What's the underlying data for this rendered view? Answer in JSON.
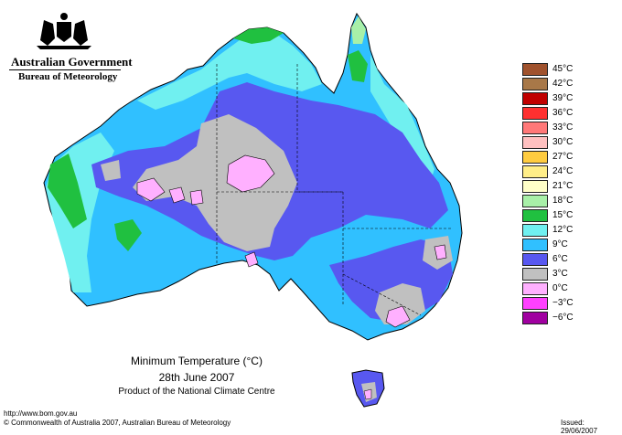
{
  "header": {
    "government": "Australian Government",
    "bureau": "Bureau of Meteorology",
    "crest_icon": "coat-of-arms-icon"
  },
  "map": {
    "title": "Minimum Temperature (°C)",
    "date": "28th June 2007",
    "product": "Product of the National Climate Centre"
  },
  "legend": [
    {
      "label": "45°C",
      "color": "#a0522d"
    },
    {
      "label": "42°C",
      "color": "#a87848"
    },
    {
      "label": "39°C",
      "color": "#c00000"
    },
    {
      "label": "36°C",
      "color": "#ff3030"
    },
    {
      "label": "33°C",
      "color": "#ff7878"
    },
    {
      "label": "30°C",
      "color": "#ffc0c0"
    },
    {
      "label": "27°C",
      "color": "#ffcc40"
    },
    {
      "label": "24°C",
      "color": "#ffee88"
    },
    {
      "label": "21°C",
      "color": "#ffffc8"
    },
    {
      "label": "18°C",
      "color": "#a8f0a8"
    },
    {
      "label": "15°C",
      "color": "#20c040"
    },
    {
      "label": "12°C",
      "color": "#70f0f0"
    },
    {
      "label": "9°C",
      "color": "#30c0ff"
    },
    {
      "label": "6°C",
      "color": "#5858f0"
    },
    {
      "label": "3°C",
      "color": "#c0c0c0"
    },
    {
      "label": "0°C",
      "color": "#ffb0ff"
    },
    {
      "label": "−3°C",
      "color": "#ff40ff"
    },
    {
      "label": "−6°C",
      "color": "#a000a0"
    }
  ],
  "footer": {
    "url": "http://www.bom.gov.au",
    "copyright": "© Commonwealth of Australia 2007, Australian Bureau of Meteorology",
    "issued": "Issued: 29/06/2007"
  }
}
